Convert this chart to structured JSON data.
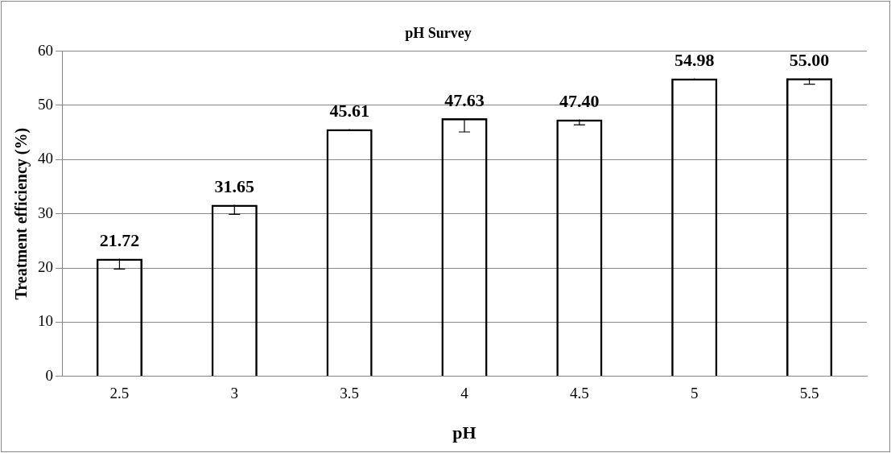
{
  "chart_data": {
    "type": "bar",
    "title": "pH Survey",
    "xlabel": "pH",
    "ylabel": "Treatment efficiency (%)",
    "categories": [
      "2.5",
      "3",
      "3.5",
      "4",
      "4.5",
      "5",
      "5.5"
    ],
    "values": [
      21.72,
      31.65,
      45.61,
      47.63,
      47.4,
      54.98,
      55.0
    ],
    "errors": [
      [
        19.8,
        21.72
      ],
      [
        29.9,
        31.65
      ],
      [
        45.4,
        45.61
      ],
      [
        45.1,
        47.63
      ],
      [
        46.4,
        47.4
      ],
      [
        54.7,
        54.98
      ],
      [
        53.9,
        55.0
      ]
    ],
    "value_labels": [
      "21.72",
      "31.65",
      "45.61",
      "47.63",
      "47.40",
      "54.98",
      "55.00"
    ],
    "color": "#000000",
    "ylim": [
      0,
      60
    ],
    "yticks": [
      0,
      10,
      20,
      30,
      40,
      50,
      60
    ],
    "grid": "y",
    "legend": false
  }
}
